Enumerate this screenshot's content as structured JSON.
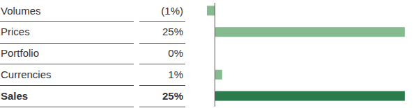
{
  "chart_data": {
    "type": "bar",
    "orientation": "horizontal",
    "categories": [
      "Volumes",
      "Prices",
      "Portfolio",
      "Currencies",
      "Sales"
    ],
    "values": [
      -1,
      25,
      0,
      1,
      25
    ],
    "value_labels": [
      "(1%)",
      "25%",
      "0%",
      "1%",
      "25%"
    ],
    "data_labels": true,
    "colors": [
      "#86bb8f",
      "#86bb8f",
      "#86bb8f",
      "#86bb8f",
      "#2b7b4d"
    ],
    "xlim": [
      -1,
      25
    ],
    "tick_labels": false
  }
}
